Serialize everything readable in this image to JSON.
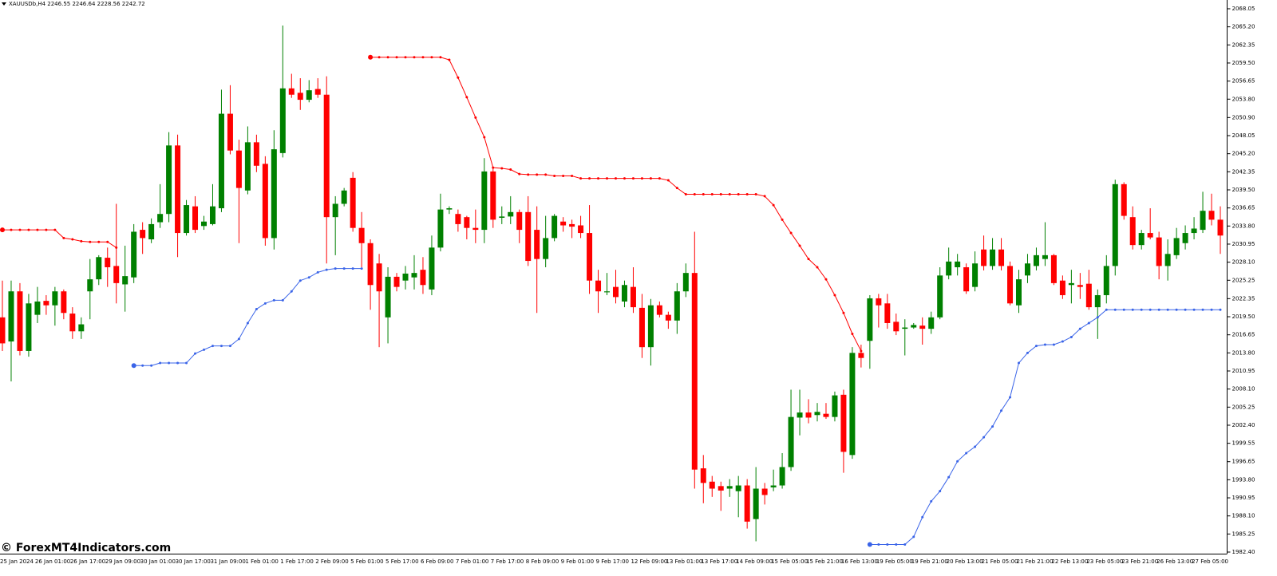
{
  "chart_data": {
    "type": "candlestick",
    "title": "XAUUSDb,H4  2246.55 2246.64 2228.56 2242.72",
    "watermark": "© ForexMT4Indicators.com",
    "up_color": "#008000",
    "down_color": "#ff0000",
    "categories": [
      "25 Jan 2024",
      null,
      null,
      null,
      "26 Jan 01:00",
      null,
      null,
      null,
      "26 Jan 17:00",
      null,
      null,
      null,
      "29 Jan 09:00",
      null,
      null,
      null,
      "30 Jan 01:00",
      null,
      null,
      null,
      "30 Jan 17:00",
      null,
      null,
      null,
      "31 Jan 09:00",
      null,
      null,
      null,
      "1 Feb 01:00",
      null,
      null,
      null,
      "1 Feb 17:00",
      null,
      null,
      null,
      "2 Feb 09:00",
      null,
      null,
      null,
      "5 Feb 01:00",
      null,
      null,
      null,
      "5 Feb 17:00",
      null,
      null,
      null,
      "6 Feb 09:00",
      null,
      null,
      null,
      "7 Feb 01:00",
      null,
      null,
      null,
      "7 Feb 17:00",
      null,
      null,
      null,
      "8 Feb 09:00",
      null,
      null,
      null,
      "9 Feb 01:00",
      null,
      null,
      null,
      "9 Feb 17:00",
      null,
      null,
      null,
      "12 Feb 09:00",
      null,
      null,
      null,
      "13 Feb 01:00",
      null,
      null,
      null,
      "13 Feb 17:00",
      null,
      null,
      null,
      "14 Feb 09:00",
      null,
      null,
      null,
      "15 Feb 05:00",
      null,
      null,
      null,
      "15 Feb 21:00",
      null,
      null,
      null,
      "16 Feb 13:00",
      null,
      null,
      null,
      "19 Feb 05:00",
      null,
      null,
      null,
      "19 Feb 21:00",
      null,
      null,
      null,
      "20 Feb 13:00",
      null,
      null,
      null,
      "21 Feb 05:00",
      null,
      null,
      null,
      "21 Feb 21:00",
      null,
      null,
      null,
      "22 Feb 13:00",
      null,
      null,
      null,
      "23 Feb 05:00",
      null,
      null,
      null,
      "23 Feb 21:00",
      null,
      null,
      null,
      "26 Feb 13:00",
      null,
      null,
      null,
      "27 Feb 05:00",
      null,
      null,
      null
    ],
    "open": [
      2019.4,
      2015.6,
      2023.5,
      2014.1,
      2019.8,
      2022.0,
      2021.3,
      2023.5,
      2020.0,
      2017.2,
      2023.5,
      2025.4,
      2028.8,
      2027.5,
      2024.6,
      2025.7,
      2033.2,
      2031.7,
      2034.4,
      2035.7,
      2046.5,
      2032.7,
      2036.9,
      2033.8,
      2034.1,
      2036.6,
      2051.5,
      2045.7,
      2039.4,
      2047.0,
      2043.6,
      2031.9,
      2045.3,
      2055.5,
      2054.8,
      2053.7,
      2055.4,
      2054.5,
      2035.2,
      2037.3,
      2041.4,
      2033.5,
      2031.1,
      2027.9,
      2019.4,
      2025.8,
      2025.2,
      2025.7,
      2026.9,
      2023.8,
      2030.4,
      2036.4,
      2035.7,
      2035.2,
      2033.5,
      2033.2,
      2042.4,
      2035.1,
      2035.3,
      2036.0,
      2036.0,
      2033.2,
      2028.6,
      2031.9,
      2034.5,
      2034.1,
      2033.9,
      2032.7,
      2025.2,
      2023.4,
      2024.2,
      2021.9,
      2024.2,
      2020.9,
      2014.7,
      2021.3,
      2019.8,
      2018.9,
      2023.5,
      2026.4,
      1995.6,
      1993.5,
      1992.8,
      1992.4,
      1992.0,
      1992.9,
      1987.6,
      1992.4,
      1992.6,
      1992.9,
      1995.8,
      2003.6,
      2004.4,
      2004.0,
      2004.2,
      2003.7,
      2007.2,
      1997.7,
      2013.8,
      2015.7,
      2022.4,
      2021.6,
      2018.7,
      2017.6,
      2017.8,
      2018.1,
      2017.6,
      2019.4,
      2026.0,
      2027.3,
      2027.3,
      2024.2,
      2030.1,
      2027.5,
      2030.1,
      2027.5,
      2021.3,
      2026.0,
      2027.5,
      2028.6,
      2029.2,
      2025.2,
      2024.5,
      2024.5,
      2024.7,
      2021.0,
      2022.9,
      2027.5,
      2040.4,
      2035.2,
      2030.8,
      2032.7,
      2032.0,
      2027.5,
      2029.2,
      2031.1,
      2032.7,
      2033.2,
      2036.2,
      2034.8
    ],
    "high": [
      2025.2,
      2025.2,
      2024.8,
      2023.1,
      2024.2,
      2022.9,
      2024.2,
      2023.8,
      2021.0,
      2019.4,
      2028.6,
      2029.2,
      2030.4,
      2037.3,
      2030.7,
      2034.1,
      2034.4,
      2035.0,
      2040.4,
      2048.6,
      2048.2,
      2037.9,
      2038.5,
      2035.4,
      2040.4,
      2055.3,
      2056.0,
      2047.4,
      2049.5,
      2048.2,
      2044.8,
      2048.9,
      2065.4,
      2057.8,
      2057.1,
      2056.8,
      2057.1,
      2057.4,
      2038.5,
      2039.8,
      2042.3,
      2036.0,
      2031.7,
      2029.4,
      2027.3,
      2026.4,
      2027.5,
      2029.2,
      2028.9,
      2032.3,
      2038.9,
      2036.9,
      2036.4,
      2035.4,
      2036.4,
      2044.5,
      2043.1,
      2036.9,
      2038.5,
      2036.4,
      2038.5,
      2036.9,
      2035.4,
      2035.7,
      2035.2,
      2034.8,
      2035.4,
      2037.1,
      2026.9,
      2026.4,
      2026.9,
      2025.2,
      2027.3,
      2023.1,
      2022.3,
      2021.9,
      2020.3,
      2024.8,
      2027.9,
      2032.9,
      1997.7,
      1994.4,
      1993.5,
      1993.9,
      1994.4,
      1993.9,
      1995.8,
      1993.3,
      1995.4,
      1998.0,
      2008.0,
      2008.0,
      2006.5,
      2005.9,
      2005.9,
      2007.7,
      2008.0,
      2014.7,
      2015.1,
      2022.9,
      2023.1,
      2023.1,
      2020.0,
      2019.1,
      2018.5,
      2019.4,
      2020.3,
      2027.3,
      2030.4,
      2029.4,
      2027.9,
      2029.8,
      2032.3,
      2031.9,
      2031.9,
      2028.2,
      2026.9,
      2029.4,
      2030.4,
      2034.4,
      2029.4,
      2026.0,
      2026.9,
      2026.4,
      2026.9,
      2023.8,
      2029.2,
      2041.1,
      2040.7,
      2036.9,
      2033.2,
      2036.6,
      2032.9,
      2031.7,
      2033.5,
      2033.9,
      2035.2,
      2039.2,
      2038.9,
      2036.9
    ],
    "low": [
      2014.1,
      2009.3,
      2013.4,
      2013.2,
      2018.5,
      2019.8,
      2018.1,
      2019.1,
      2016.0,
      2016.0,
      2019.1,
      2024.5,
      2024.2,
      2021.6,
      2020.3,
      2024.8,
      2029.4,
      2031.1,
      2033.5,
      2034.4,
      2028.9,
      2032.3,
      2032.7,
      2033.2,
      2033.9,
      2036.0,
      2045.1,
      2031.1,
      2038.8,
      2042.3,
      2030.7,
      2030.1,
      2044.6,
      2054.0,
      2052.1,
      2053.3,
      2054.0,
      2027.9,
      2029.2,
      2036.9,
      2032.9,
      2027.3,
      2020.6,
      2014.7,
      2015.3,
      2023.5,
      2023.8,
      2023.8,
      2023.1,
      2022.9,
      2029.8,
      2035.7,
      2032.9,
      2031.7,
      2031.1,
      2031.1,
      2033.5,
      2034.1,
      2034.1,
      2031.1,
      2027.5,
      2020.1,
      2027.3,
      2031.4,
      2032.9,
      2031.9,
      2031.9,
      2023.1,
      2020.1,
      2022.9,
      2021.6,
      2021.0,
      2020.1,
      2013.0,
      2011.8,
      2019.4,
      2017.6,
      2016.8,
      2022.6,
      1992.4,
      1990.1,
      1991.1,
      1988.9,
      1991.1,
      1987.9,
      1986.1,
      1984.1,
      1989.9,
      1992.0,
      1992.4,
      1995.2,
      2000.8,
      2002.7,
      2003.0,
      2003.4,
      2003.0,
      1994.9,
      1997.1,
      2011.5,
      2011.3,
      2017.8,
      2017.6,
      2016.6,
      2013.4,
      2017.6,
      2015.1,
      2016.8,
      2019.1,
      2025.4,
      2026.0,
      2023.1,
      2023.5,
      2026.8,
      2026.9,
      2026.8,
      2021.3,
      2020.1,
      2024.8,
      2026.8,
      2027.5,
      2024.5,
      2022.3,
      2021.6,
      2022.3,
      2020.6,
      2016.0,
      2021.6,
      2026.0,
      2034.8,
      2030.1,
      2030.1,
      2031.7,
      2025.4,
      2025.2,
      2028.6,
      2030.1,
      2031.7,
      2032.7,
      2033.9,
      2029.4
    ],
    "close": [
      2015.3,
      2023.5,
      2014.1,
      2021.6,
      2021.9,
      2021.3,
      2023.5,
      2020.1,
      2017.2,
      2018.3,
      2025.4,
      2028.9,
      2027.3,
      2024.8,
      2025.9,
      2032.9,
      2031.9,
      2034.1,
      2035.7,
      2046.5,
      2032.7,
      2037.1,
      2033.2,
      2034.5,
      2036.9,
      2051.5,
      2045.7,
      2039.8,
      2047.0,
      2043.3,
      2031.9,
      2045.9,
      2055.5,
      2054.5,
      2053.7,
      2055.2,
      2054.5,
      2035.2,
      2037.3,
      2039.4,
      2033.5,
      2031.1,
      2024.5,
      2023.5,
      2025.8,
      2024.2,
      2026.3,
      2026.4,
      2024.5,
      2030.4,
      2036.4,
      2036.6,
      2034.1,
      2033.5,
      2033.2,
      2042.4,
      2034.8,
      2035.3,
      2036.0,
      2033.2,
      2028.3,
      2028.6,
      2031.9,
      2035.4,
      2033.9,
      2033.7,
      2032.7,
      2025.2,
      2023.5,
      2023.5,
      2022.6,
      2024.5,
      2021.0,
      2014.7,
      2021.3,
      2019.8,
      2018.9,
      2023.5,
      2026.4,
      1995.4,
      1993.3,
      1992.4,
      1992.1,
      1992.8,
      1992.9,
      1987.2,
      1992.4,
      1991.4,
      1992.9,
      1995.8,
      2003.7,
      2004.4,
      2003.6,
      2004.5,
      2003.7,
      2007.1,
      1998.2,
      2013.8,
      2013.0,
      2022.4,
      2021.3,
      2018.5,
      2017.2,
      2017.8,
      2018.2,
      2017.6,
      2019.4,
      2026.0,
      2028.2,
      2028.2,
      2023.5,
      2027.9,
      2027.5,
      2030.1,
      2027.5,
      2021.6,
      2025.4,
      2027.9,
      2029.2,
      2029.2,
      2024.8,
      2022.9,
      2024.8,
      2024.2,
      2021.0,
      2022.9,
      2027.5,
      2040.4,
      2035.4,
      2030.8,
      2032.7,
      2032.0,
      2027.5,
      2029.4,
      2031.9,
      2032.7,
      2033.4,
      2036.2,
      2034.8,
      2032.3
    ],
    "series": [
      {
        "color": "#ff0000",
        "values": [
          2033.2,
          2033.2,
          2033.2,
          2033.2,
          2033.2,
          2033.2,
          2033.2,
          2031.9,
          2031.7,
          2031.4,
          2031.3,
          2031.3,
          2031.3,
          2030.4,
          null,
          null,
          null,
          null,
          null,
          null,
          null,
          null,
          null,
          null,
          null,
          null,
          null,
          null,
          null,
          null,
          null,
          null,
          null,
          null,
          null,
          null,
          null,
          null,
          null,
          null,
          null,
          null,
          2060.4,
          2060.4,
          2060.4,
          2060.4,
          2060.4,
          2060.4,
          2060.4,
          2060.4,
          2060.4,
          2060.0,
          2057.2,
          2054.1,
          2050.9,
          2047.8,
          2043.0,
          2042.9,
          2042.7,
          2042.0,
          2041.9,
          2041.9,
          2041.9,
          2041.7,
          2041.7,
          2041.7,
          2041.3,
          2041.3,
          2041.3,
          2041.3,
          2041.3,
          2041.3,
          2041.3,
          2041.3,
          2041.3,
          2041.3,
          2041.0,
          2039.8,
          2038.8,
          2038.8,
          2038.8,
          2038.8,
          2038.8,
          2038.8,
          2038.8,
          2038.8,
          2038.8,
          2038.5,
          2037.1,
          2034.8,
          2032.7,
          2030.7,
          2028.6,
          2027.3,
          2025.4,
          2022.9,
          2020.1,
          2016.8,
          2014.1,
          null,
          null,
          null,
          null,
          null,
          null,
          null,
          null,
          null,
          null,
          null,
          null,
          null,
          null,
          null,
          null,
          null,
          null,
          null,
          null,
          null,
          null,
          null,
          null,
          null,
          null,
          null,
          null,
          null,
          null,
          null,
          null,
          null,
          null,
          null,
          null,
          null,
          null,
          null,
          null,
          null
        ]
      },
      {
        "color": "#3a64e8",
        "values": [
          null,
          null,
          null,
          null,
          null,
          null,
          null,
          null,
          null,
          null,
          null,
          null,
          null,
          null,
          null,
          2011.8,
          2011.8,
          2011.8,
          2012.2,
          2012.2,
          2012.2,
          2012.2,
          2013.7,
          2014.3,
          2014.9,
          2014.9,
          2014.9,
          2016.0,
          2018.5,
          2020.7,
          2021.6,
          2022.1,
          2022.1,
          2023.5,
          2025.2,
          2025.7,
          2026.5,
          2026.9,
          2027.1,
          2027.1,
          2027.1,
          2027.1,
          null,
          null,
          null,
          null,
          null,
          null,
          null,
          null,
          null,
          null,
          null,
          null,
          null,
          null,
          null,
          null,
          null,
          null,
          null,
          null,
          null,
          null,
          null,
          null,
          null,
          null,
          null,
          null,
          null,
          null,
          null,
          null,
          null,
          null,
          null,
          null,
          null,
          null,
          null,
          null,
          null,
          null,
          null,
          null,
          null,
          null,
          null,
          null,
          null,
          null,
          null,
          null,
          null,
          null,
          null,
          null,
          null,
          1983.6,
          1983.6,
          1983.6,
          1983.6,
          1983.6,
          1984.8,
          1987.9,
          1990.4,
          1992.0,
          1994.2,
          1996.7,
          1998.0,
          1999.0,
          2000.5,
          2002.2,
          2004.7,
          2006.8,
          2012.2,
          2013.8,
          2014.9,
          2015.1,
          2015.1,
          2015.6,
          2016.3,
          2017.6,
          2018.5,
          2019.4,
          2020.6,
          2020.6,
          2020.6,
          2020.6,
          2020.6,
          2020.6,
          2020.6,
          2020.6,
          2020.6,
          2020.6,
          2020.6,
          2020.6,
          2020.6,
          2020.6
        ]
      }
    ],
    "ylim": [
      1982.15,
      2069.43
    ],
    "yticks": [
      2068.05,
      {
        "value": 2065.2,
        "label": "2065.20"
      },
      2062.35,
      {
        "value": 2059.5,
        "label": "2059.50"
      },
      2056.65,
      {
        "value": 2053.8,
        "label": "2053.80"
      },
      {
        "value": 2050.9,
        "label": "2050.90"
      },
      2048.05,
      {
        "value": 2045.2,
        "label": "2045.20"
      },
      2042.35,
      {
        "value": 2039.5,
        "label": "2039.50"
      },
      2036.65,
      {
        "value": 2033.8,
        "label": "2033.80"
      },
      2030.95,
      {
        "value": 2028.1,
        "label": "2028.10"
      },
      2025.25,
      2022.35,
      {
        "value": 2019.5,
        "label": "2019.50"
      },
      2016.65,
      {
        "value": 2013.8,
        "label": "2013.80"
      },
      2010.95,
      {
        "value": 2008.1,
        "label": "2008.10"
      },
      2005.25,
      {
        "value": 2002.4,
        "label": "2002.40"
      },
      1999.55,
      1996.65,
      {
        "value": 1993.8,
        "label": "1993.80"
      },
      1990.95,
      {
        "value": 1988.1,
        "label": "1988.10"
      },
      1985.25,
      {
        "value": 1982.4,
        "label": "1982.40"
      }
    ],
    "grid": false
  }
}
